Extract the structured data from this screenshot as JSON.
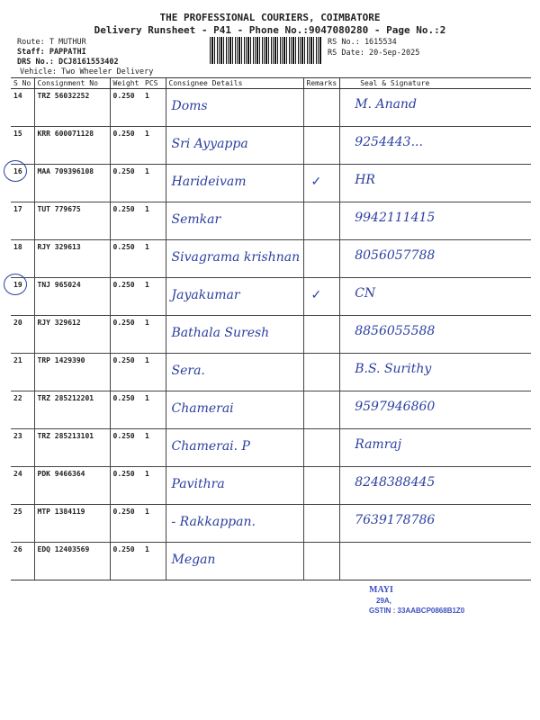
{
  "header": {
    "title": "THE PROFESSIONAL COURIERS, COIMBATORE",
    "subtitle": "Delivery Runsheet - P41 - Phone No.:9047080280 - Page No.:2",
    "route": "Route: T MUTHUR",
    "staff": "Staff: PAPPATHI",
    "drs_no": "DRS No.: DCJ8161553402",
    "vehicle": "Vehicle: Two Wheeler Delivery",
    "rs_no": "RS No.: 1615534",
    "rs_date": "RS Date: 20-Sep-2025"
  },
  "table": {
    "columns": [
      "S No",
      "Consignment No",
      "Weight",
      "PCS",
      "Consignee Details",
      "Remarks",
      "Seal & Signature"
    ],
    "rows": [
      {
        "sno": "14",
        "cons": "TRZ 56032252",
        "weight": "0.250",
        "pcs": "1",
        "consignee": "Doms",
        "remarks": "",
        "signature": "M. Anand",
        "circled": false
      },
      {
        "sno": "15",
        "cons": "KRR 600071128",
        "weight": "0.250",
        "pcs": "1",
        "consignee": "Sri Ayyappa",
        "remarks": "",
        "signature": "9254443...",
        "circled": false
      },
      {
        "sno": "16",
        "cons": "MAA 709396108",
        "weight": "0.250",
        "pcs": "1",
        "consignee": "Harideivam",
        "remarks": "✓",
        "signature": "HR",
        "circled": true
      },
      {
        "sno": "17",
        "cons": "TUT 779675",
        "weight": "0.250",
        "pcs": "1",
        "consignee": "Semkar",
        "remarks": "",
        "signature": "9942111415",
        "circled": false
      },
      {
        "sno": "18",
        "cons": "RJY 329613",
        "weight": "0.250",
        "pcs": "1",
        "consignee": "Sivagrama krishnan",
        "remarks": "",
        "signature": "8056057788",
        "circled": false
      },
      {
        "sno": "19",
        "cons": "TNJ 965024",
        "weight": "0.250",
        "pcs": "1",
        "consignee": "Jayakumar",
        "remarks": "✓",
        "signature": "CN",
        "circled": true
      },
      {
        "sno": "20",
        "cons": "RJY 329612",
        "weight": "0.250",
        "pcs": "1",
        "consignee": "Bathala Suresh",
        "remarks": "",
        "signature": "8856055588",
        "circled": false
      },
      {
        "sno": "21",
        "cons": "TRP 1429390",
        "weight": "0.250",
        "pcs": "1",
        "consignee": "Sera.",
        "remarks": "",
        "signature": "B.S. Surithy",
        "circled": false
      },
      {
        "sno": "22",
        "cons": "TRZ 285212201",
        "weight": "0.250",
        "pcs": "1",
        "consignee": "Chamerai",
        "remarks": "",
        "signature": "9597946860",
        "circled": false
      },
      {
        "sno": "23",
        "cons": "TRZ 285213101",
        "weight": "0.250",
        "pcs": "1",
        "consignee": "Chamerai. P",
        "remarks": "",
        "signature": "Ramraj",
        "circled": false
      },
      {
        "sno": "24",
        "cons": "PDK 9466364",
        "weight": "0.250",
        "pcs": "1",
        "consignee": "Pavithra",
        "remarks": "",
        "signature": "8248388445",
        "circled": false
      },
      {
        "sno": "25",
        "cons": "MTP 1384119",
        "weight": "0.250",
        "pcs": "1",
        "consignee": "- Rakkappan.",
        "remarks": "",
        "signature": "7639178786",
        "circled": false
      },
      {
        "sno": "26",
        "cons": "EDQ 12403569",
        "weight": "0.250",
        "pcs": "1",
        "consignee": "Megan",
        "remarks": "",
        "signature": "",
        "circled": false
      }
    ]
  },
  "stamp": {
    "name": "MAYI",
    "line2": "29A,",
    "gstin": "GSTIN : 33AABCP0868B1Z0"
  },
  "colors": {
    "ink": "#2b3fa0",
    "print": "#222222"
  }
}
